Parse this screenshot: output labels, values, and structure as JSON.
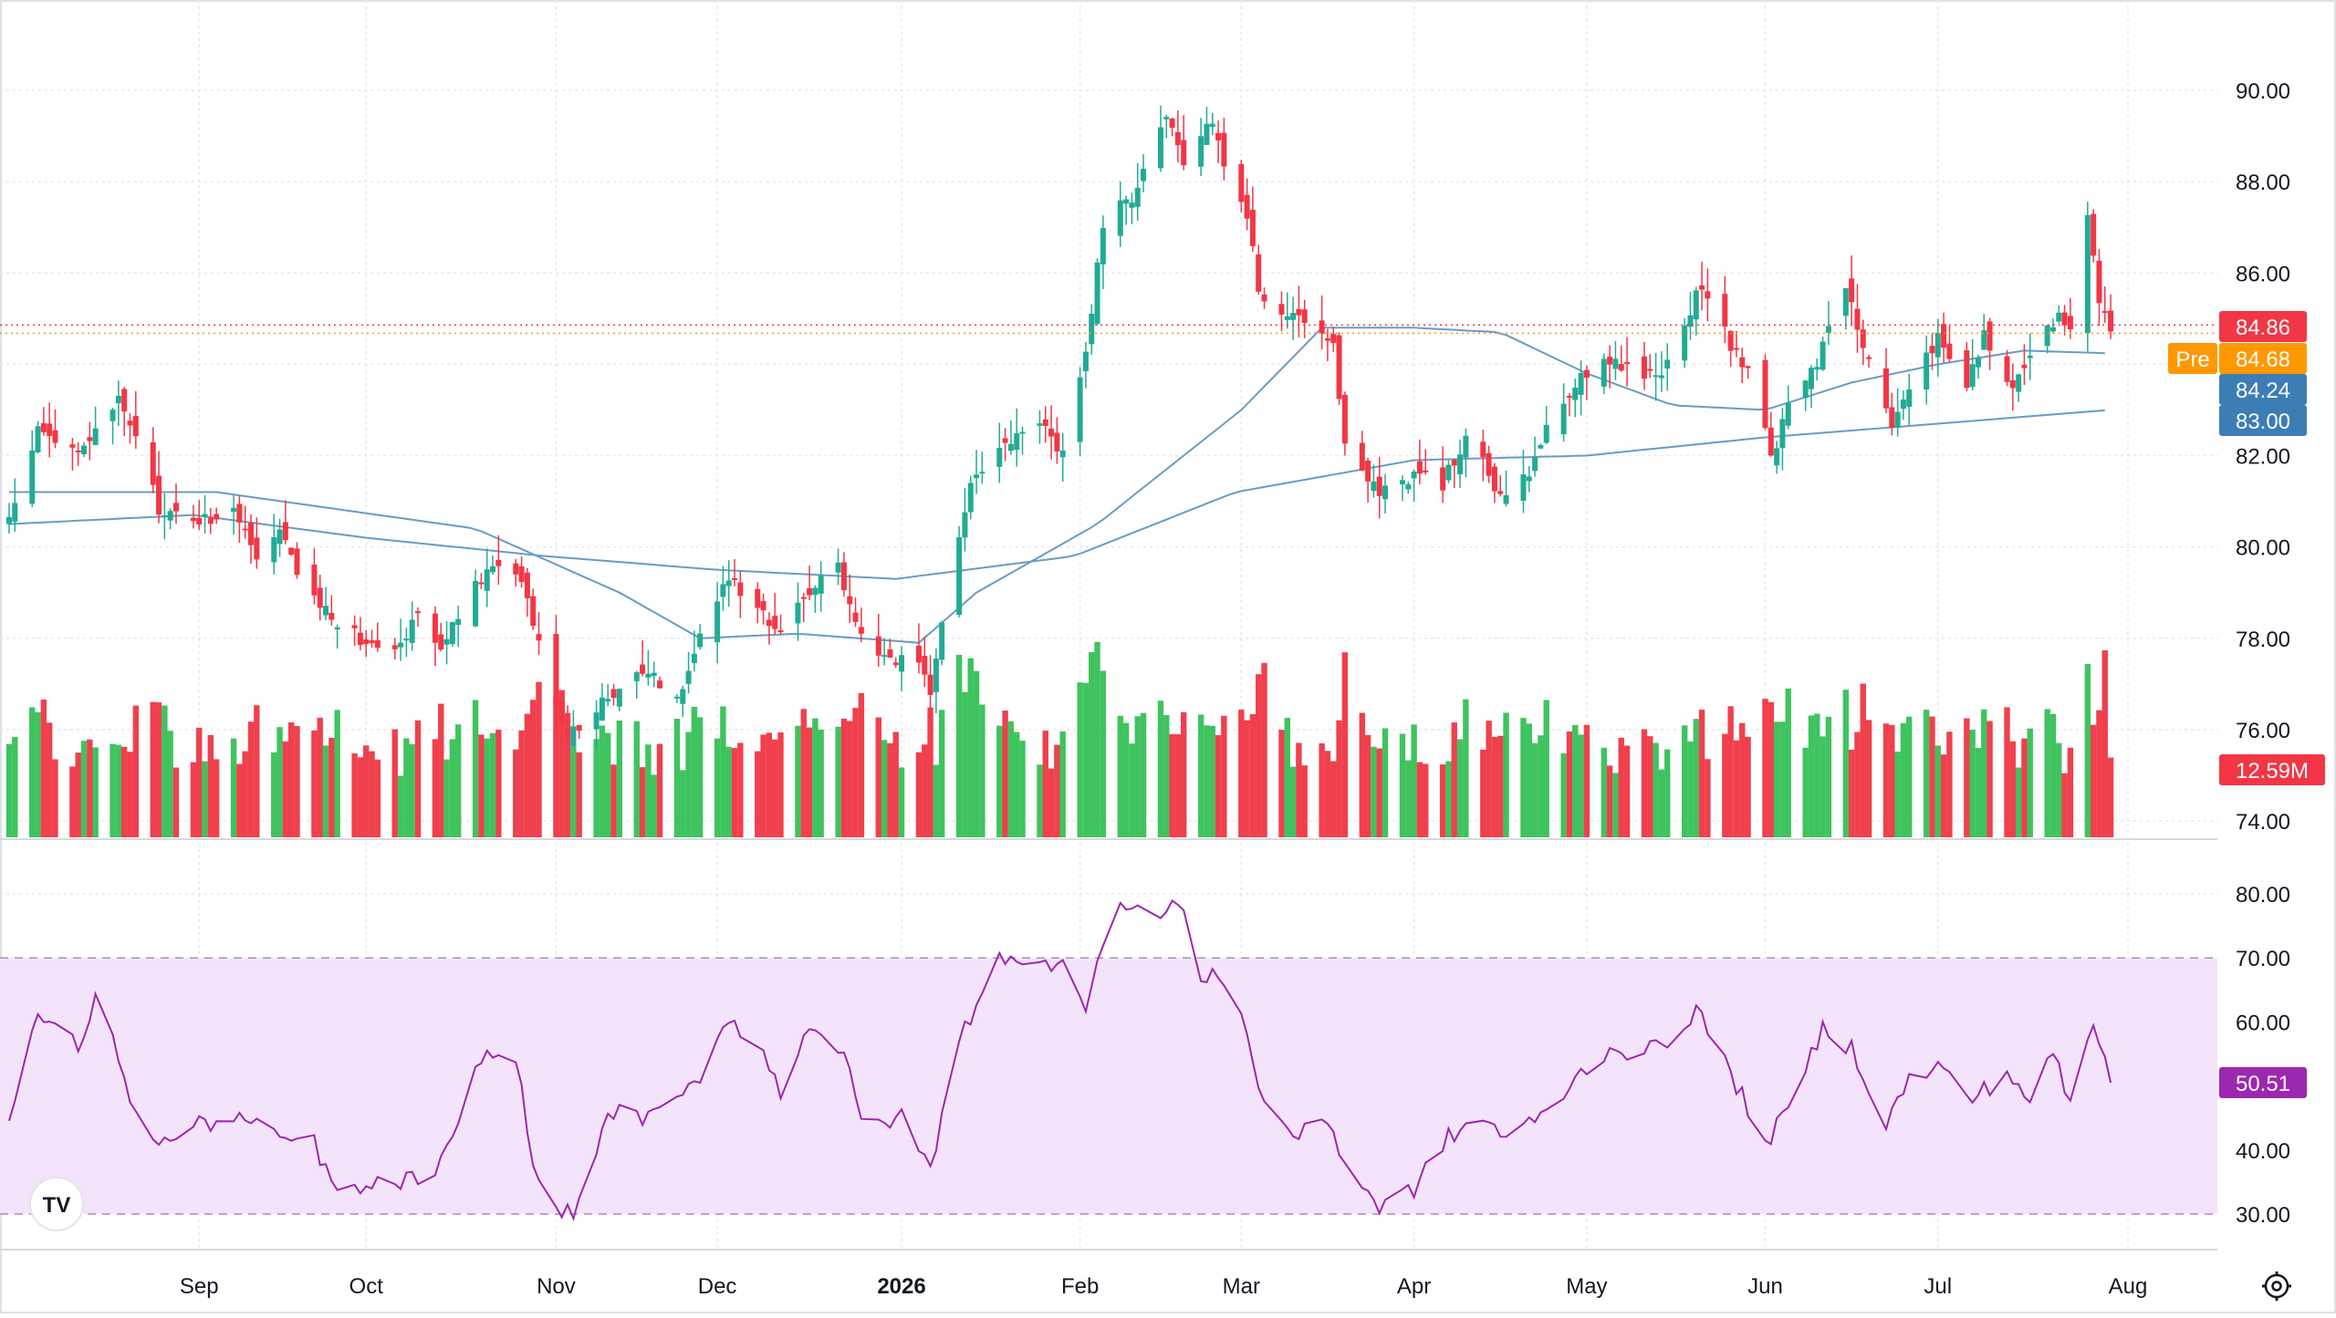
{
  "chart_data": [
    {
      "type": "candlestick",
      "pane": "price",
      "ylim": [
        73.5,
        91.5
      ],
      "y_ticks": [
        "90.00",
        "88.00",
        "86.00",
        "84.00",
        "82.00",
        "80.00",
        "78.00",
        "76.00",
        "74.00"
      ],
      "y_tick_values": [
        90,
        88,
        86,
        84,
        82,
        80,
        78,
        76,
        74
      ],
      "x_ticks": [
        {
          "label": "Sep",
          "date": "2025-09-02",
          "bold": false
        },
        {
          "label": "Oct",
          "date": "2025-10-01",
          "bold": false
        },
        {
          "label": "Nov",
          "date": "2025-11-03",
          "bold": false
        },
        {
          "label": "Dec",
          "date": "2025-12-01",
          "bold": false
        },
        {
          "label": "2026",
          "date": "2026-01-02",
          "bold": true
        },
        {
          "label": "Feb",
          "date": "2026-02-02",
          "bold": false
        },
        {
          "label": "Mar",
          "date": "2026-03-02",
          "bold": false
        },
        {
          "label": "Apr",
          "date": "2026-04-01",
          "bold": false
        },
        {
          "label": "May",
          "date": "2026-05-01",
          "bold": false
        },
        {
          "label": "Jun",
          "date": "2026-06-01",
          "bold": false
        },
        {
          "label": "Jul",
          "date": "2026-07-01",
          "bold": false
        },
        {
          "label": "Aug",
          "date": "2026-08-03",
          "bold": false
        }
      ],
      "x_range": [
        "2025-07-31",
        "2026-08-03"
      ],
      "grid": true,
      "colors": {
        "up": "#22ab94",
        "down": "#f23645",
        "up_volume": "#3fc35f",
        "down_volume": "#f0404d",
        "ma": "#6a9bc3",
        "grid": "#e6e8ee"
      },
      "anchors": [
        {
          "date": "2025-07-31",
          "close": 80.5
        },
        {
          "date": "2025-08-05",
          "close": 82.6
        },
        {
          "date": "2025-08-12",
          "close": 82.0
        },
        {
          "date": "2025-08-19",
          "close": 83.2
        },
        {
          "date": "2025-08-22",
          "close": 82.4
        },
        {
          "date": "2025-08-26",
          "close": 80.8
        },
        {
          "date": "2025-09-02",
          "close": 80.6
        },
        {
          "date": "2025-09-09",
          "close": 80.7
        },
        {
          "date": "2025-09-12",
          "close": 79.7
        },
        {
          "date": "2025-09-16",
          "close": 80.3
        },
        {
          "date": "2025-09-19",
          "close": 79.4
        },
        {
          "date": "2025-09-24",
          "close": 78.6
        },
        {
          "date": "2025-09-30",
          "close": 78.0
        },
        {
          "date": "2025-10-07",
          "close": 77.9
        },
        {
          "date": "2025-10-10",
          "close": 78.6
        },
        {
          "date": "2025-10-14",
          "close": 77.8
        },
        {
          "date": "2025-10-21",
          "close": 79.3
        },
        {
          "date": "2025-10-24",
          "close": 79.6
        },
        {
          "date": "2025-10-28",
          "close": 79.4
        },
        {
          "date": "2025-10-30",
          "close": 78.4
        },
        {
          "date": "2025-11-03",
          "close": 76.6
        },
        {
          "date": "2025-11-05",
          "close": 75.9
        },
        {
          "date": "2025-11-10",
          "close": 76.4
        },
        {
          "date": "2025-11-14",
          "close": 77.0
        },
        {
          "date": "2025-11-19",
          "close": 77.3
        },
        {
          "date": "2025-11-24",
          "close": 76.7
        },
        {
          "date": "2025-11-28",
          "close": 78.1
        },
        {
          "date": "2025-12-03",
          "close": 79.3
        },
        {
          "date": "2025-12-08",
          "close": 78.8
        },
        {
          "date": "2025-12-12",
          "close": 78.0
        },
        {
          "date": "2025-12-17",
          "close": 79.1
        },
        {
          "date": "2025-12-22",
          "close": 79.6
        },
        {
          "date": "2025-12-26",
          "close": 78.0
        },
        {
          "date": "2025-12-31",
          "close": 77.6
        },
        {
          "date": "2026-01-05",
          "close": 77.3
        },
        {
          "date": "2026-01-07",
          "close": 76.8
        },
        {
          "date": "2026-01-09",
          "close": 78.4
        },
        {
          "date": "2026-01-14",
          "close": 81.4
        },
        {
          "date": "2026-01-20",
          "close": 82.2
        },
        {
          "date": "2026-01-26",
          "close": 82.7
        },
        {
          "date": "2026-01-30",
          "close": 82.1
        },
        {
          "date": "2026-02-03",
          "close": 84.3
        },
        {
          "date": "2026-02-06",
          "close": 87.0
        },
        {
          "date": "2026-02-11",
          "close": 87.7
        },
        {
          "date": "2026-02-17",
          "close": 89.5
        },
        {
          "date": "2026-02-20",
          "close": 88.2
        },
        {
          "date": "2026-02-25",
          "close": 89.4
        },
        {
          "date": "2026-02-27",
          "close": 88.4
        },
        {
          "date": "2026-03-03",
          "close": 87.3
        },
        {
          "date": "2026-03-05",
          "close": 85.6
        },
        {
          "date": "2026-03-09",
          "close": 85.2
        },
        {
          "date": "2026-03-13",
          "close": 84.8
        },
        {
          "date": "2026-03-18",
          "close": 84.3
        },
        {
          "date": "2026-03-20",
          "close": 82.3
        },
        {
          "date": "2026-03-26",
          "close": 81.2
        },
        {
          "date": "2026-04-01",
          "close": 81.6
        },
        {
          "date": "2026-04-06",
          "close": 81.4
        },
        {
          "date": "2026-04-10",
          "close": 82.4
        },
        {
          "date": "2026-04-14",
          "close": 81.6
        },
        {
          "date": "2026-04-16",
          "close": 81.0
        },
        {
          "date": "2026-04-21",
          "close": 81.6
        },
        {
          "date": "2026-04-24",
          "close": 82.6
        },
        {
          "date": "2026-04-29",
          "close": 83.6
        },
        {
          "date": "2026-05-04",
          "close": 84.2
        },
        {
          "date": "2026-05-08",
          "close": 83.9
        },
        {
          "date": "2026-05-13",
          "close": 83.7
        },
        {
          "date": "2026-05-18",
          "close": 84.8
        },
        {
          "date": "2026-05-21",
          "close": 85.8
        },
        {
          "date": "2026-05-26",
          "close": 84.4
        },
        {
          "date": "2026-05-29",
          "close": 83.9
        },
        {
          "date": "2026-06-02",
          "close": 82.0
        },
        {
          "date": "2026-06-05",
          "close": 83.0
        },
        {
          "date": "2026-06-10",
          "close": 84.0
        },
        {
          "date": "2026-06-15",
          "close": 85.7
        },
        {
          "date": "2026-06-19",
          "close": 84.0
        },
        {
          "date": "2026-06-23",
          "close": 82.6
        },
        {
          "date": "2026-06-26",
          "close": 83.6
        },
        {
          "date": "2026-07-01",
          "close": 84.6
        },
        {
          "date": "2026-07-06",
          "close": 83.5
        },
        {
          "date": "2026-07-09",
          "close": 84.7
        },
        {
          "date": "2026-07-14",
          "close": 83.4
        },
        {
          "date": "2026-07-17",
          "close": 84.2
        },
        {
          "date": "2026-07-22",
          "close": 85.1
        },
        {
          "date": "2026-07-24",
          "close": 84.6
        },
        {
          "date": "2026-07-27",
          "close": 87.4
        },
        {
          "date": "2026-07-29",
          "close": 85.5
        },
        {
          "date": "2026-07-31",
          "close": 84.86
        }
      ],
      "volume": {
        "unit": "M",
        "last": 12.59
      },
      "moving_averages": [
        {
          "name": "",
          "values": [
            [
              "2025-07-31",
              81.2
            ],
            [
              "2025-09-05",
              81.2
            ],
            [
              "2025-10-20",
              80.4
            ],
            [
              "2025-11-14",
              79.0
            ],
            [
              "2025-11-28",
              78.0
            ],
            [
              "2025-12-15",
              78.1
            ],
            [
              "2026-01-05",
              77.9
            ],
            [
              "2026-01-15",
              79.0
            ],
            [
              "2026-02-05",
              80.5
            ],
            [
              "2026-03-02",
              83.0
            ],
            [
              "2026-03-16",
              84.8
            ],
            [
              "2026-04-01",
              84.8
            ],
            [
              "2026-04-16",
              84.7
            ],
            [
              "2026-05-01",
              83.8
            ],
            [
              "2026-05-16",
              83.1
            ],
            [
              "2026-06-01",
              83.0
            ],
            [
              "2026-06-16",
              83.6
            ],
            [
              "2026-07-01",
              84.0
            ],
            [
              "2026-07-16",
              84.3
            ],
            [
              "2026-07-31",
              84.24
            ]
          ]
        },
        {
          "name": "",
          "values": [
            [
              "2025-07-31",
              80.5
            ],
            [
              "2025-09-01",
              80.7
            ],
            [
              "2025-10-01",
              80.2
            ],
            [
              "2025-11-01",
              79.8
            ],
            [
              "2025-12-01",
              79.5
            ],
            [
              "2026-01-01",
              79.3
            ],
            [
              "2026-02-01",
              79.8
            ],
            [
              "2026-03-01",
              81.2
            ],
            [
              "2026-04-01",
              81.9
            ],
            [
              "2026-05-01",
              82.0
            ],
            [
              "2026-06-01",
              82.4
            ],
            [
              "2026-07-01",
              82.7
            ],
            [
              "2026-07-31",
              83.0
            ]
          ]
        }
      ],
      "price_labels": [
        {
          "kind": "close",
          "text": "84.86",
          "value": 84.86,
          "color": "#f23645",
          "line": "dotted"
        },
        {
          "kind": "pre",
          "prefix": "Pre",
          "text": "84.68",
          "value": 84.68,
          "color": "#ff9800",
          "line": "dotted"
        },
        {
          "kind": "ma1",
          "text": "84.24",
          "value": 84.24,
          "color": "#3d7db5",
          "line": "none"
        },
        {
          "kind": "ma2",
          "text": "83.00",
          "value": 83.0,
          "color": "#3d7db5",
          "line": "none"
        },
        {
          "kind": "volume",
          "text": "12.59M",
          "color": "#f23645",
          "line": "none"
        }
      ]
    },
    {
      "type": "line",
      "pane": "rsi",
      "ylim": [
        28,
        83
      ],
      "y_ticks": [
        "80.00",
        "70.00",
        "60.00",
        "50.00",
        "40.00",
        "30.00"
      ],
      "y_tick_values": [
        80,
        70,
        60,
        50,
        40,
        30
      ],
      "band": [
        30,
        70
      ],
      "colors": {
        "line": "#9c27b0",
        "band": "#f3e4fb",
        "band_edge": "#a58fb4"
      },
      "anchors": [
        {
          "date": "2025-07-31",
          "value": 46
        },
        {
          "date": "2025-08-05",
          "value": 61
        },
        {
          "date": "2025-08-12",
          "value": 56
        },
        {
          "date": "2025-08-15",
          "value": 63
        },
        {
          "date": "2025-08-19",
          "value": 55
        },
        {
          "date": "2025-08-22",
          "value": 45
        },
        {
          "date": "2025-08-27",
          "value": 41
        },
        {
          "date": "2025-09-02",
          "value": 44
        },
        {
          "date": "2025-09-09",
          "value": 45
        },
        {
          "date": "2025-09-15",
          "value": 42
        },
        {
          "date": "2025-09-22",
          "value": 41
        },
        {
          "date": "2025-09-26",
          "value": 33
        },
        {
          "date": "2025-10-06",
          "value": 35
        },
        {
          "date": "2025-10-13",
          "value": 36
        },
        {
          "date": "2025-10-17",
          "value": 43
        },
        {
          "date": "2025-10-21",
          "value": 55
        },
        {
          "date": "2025-10-27",
          "value": 54
        },
        {
          "date": "2025-10-31",
          "value": 34
        },
        {
          "date": "2025-11-04",
          "value": 30
        },
        {
          "date": "2025-11-07",
          "value": 31
        },
        {
          "date": "2025-11-12",
          "value": 46
        },
        {
          "date": "2025-11-20",
          "value": 45
        },
        {
          "date": "2025-11-27",
          "value": 50
        },
        {
          "date": "2025-12-03",
          "value": 61
        },
        {
          "date": "2025-12-09",
          "value": 55
        },
        {
          "date": "2025-12-12",
          "value": 49
        },
        {
          "date": "2025-12-17",
          "value": 60
        },
        {
          "date": "2025-12-23",
          "value": 55
        },
        {
          "date": "2025-12-26",
          "value": 44
        },
        {
          "date": "2026-01-02",
          "value": 45
        },
        {
          "date": "2026-01-07",
          "value": 37
        },
        {
          "date": "2026-01-12",
          "value": 57
        },
        {
          "date": "2026-01-19",
          "value": 71
        },
        {
          "date": "2026-01-23",
          "value": 68
        },
        {
          "date": "2026-01-30",
          "value": 70
        },
        {
          "date": "2026-02-03",
          "value": 63
        },
        {
          "date": "2026-02-06",
          "value": 72
        },
        {
          "date": "2026-02-10",
          "value": 79
        },
        {
          "date": "2026-02-16",
          "value": 76
        },
        {
          "date": "2026-02-19",
          "value": 79
        },
        {
          "date": "2026-02-23",
          "value": 67
        },
        {
          "date": "2026-02-26",
          "value": 68
        },
        {
          "date": "2026-03-02",
          "value": 61
        },
        {
          "date": "2026-03-06",
          "value": 47
        },
        {
          "date": "2026-03-12",
          "value": 42
        },
        {
          "date": "2026-03-17",
          "value": 45
        },
        {
          "date": "2026-03-20",
          "value": 38
        },
        {
          "date": "2026-03-26",
          "value": 31
        },
        {
          "date": "2026-04-01",
          "value": 34
        },
        {
          "date": "2026-04-07",
          "value": 42
        },
        {
          "date": "2026-04-13",
          "value": 45
        },
        {
          "date": "2026-04-17",
          "value": 42
        },
        {
          "date": "2026-04-23",
          "value": 45
        },
        {
          "date": "2026-04-29",
          "value": 51
        },
        {
          "date": "2026-05-05",
          "value": 56
        },
        {
          "date": "2026-05-11",
          "value": 55
        },
        {
          "date": "2026-05-15",
          "value": 57
        },
        {
          "date": "2026-05-20",
          "value": 62
        },
        {
          "date": "2026-05-26",
          "value": 52
        },
        {
          "date": "2026-06-01",
          "value": 41
        },
        {
          "date": "2026-06-05",
          "value": 46
        },
        {
          "date": "2026-06-11",
          "value": 59
        },
        {
          "date": "2026-06-16",
          "value": 56
        },
        {
          "date": "2026-06-22",
          "value": 44
        },
        {
          "date": "2026-06-26",
          "value": 51
        },
        {
          "date": "2026-07-01",
          "value": 53
        },
        {
          "date": "2026-07-07",
          "value": 48
        },
        {
          "date": "2026-07-13",
          "value": 52
        },
        {
          "date": "2026-07-17",
          "value": 48
        },
        {
          "date": "2026-07-21",
          "value": 55
        },
        {
          "date": "2026-07-24",
          "value": 47
        },
        {
          "date": "2026-07-28",
          "value": 60
        },
        {
          "date": "2026-07-31",
          "value": 50.51
        }
      ],
      "price_labels": [
        {
          "kind": "rsi",
          "text": "50.51",
          "value": 50.51,
          "color": "#9c27b0"
        }
      ]
    }
  ],
  "icons": {
    "logo": "tradingview-logo-icon",
    "settings": "settings-gear-icon"
  },
  "logo_text": "TV"
}
